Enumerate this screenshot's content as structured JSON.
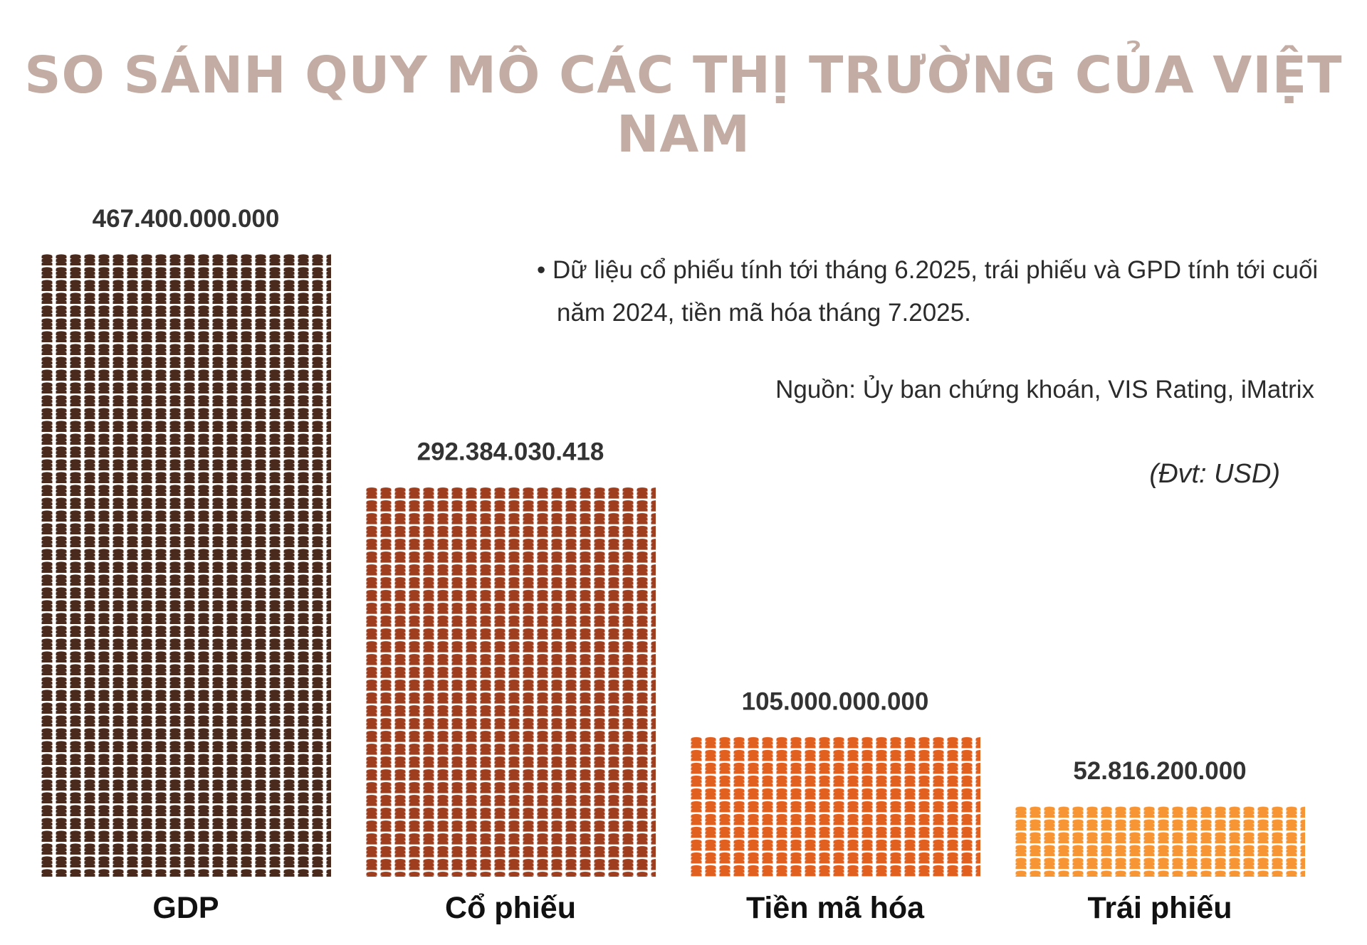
{
  "title": "SO SÁNH QUY MÔ CÁC THỊ TRƯỜNG CỦA VIỆT NAM",
  "note": "• Dữ liệu cổ phiếu tính tới tháng 6.2025, trái phiếu và GPD tính tới cuối năm 2024, tiền mã hóa tháng 7.2025.",
  "source": "Nguồn: Ủy ban chứng khoán, VIS Rating, iMatrix",
  "unit": "(Đvt: USD)",
  "chart_data": {
    "type": "bar",
    "title": "SO SÁNH QUY MÔ CÁC THỊ TRƯỜNG CỦA VIỆT NAM",
    "categories": [
      "GDP",
      "Cổ phiếu",
      "Tiền mã hóa",
      "Trái phiếu"
    ],
    "values": [
      467400000000,
      292384030418,
      105000000000,
      52816200000
    ],
    "value_labels": [
      "467.400.000.000",
      "292.384.030.418",
      "105.000.000.000",
      "52.816.200.000"
    ],
    "unit": "USD",
    "colors": [
      "#4a2a1c",
      "#9e3e1e",
      "#e2601f",
      "#f79534"
    ],
    "ylim": [
      0,
      467400000000
    ],
    "grid": false,
    "legend": "none"
  }
}
